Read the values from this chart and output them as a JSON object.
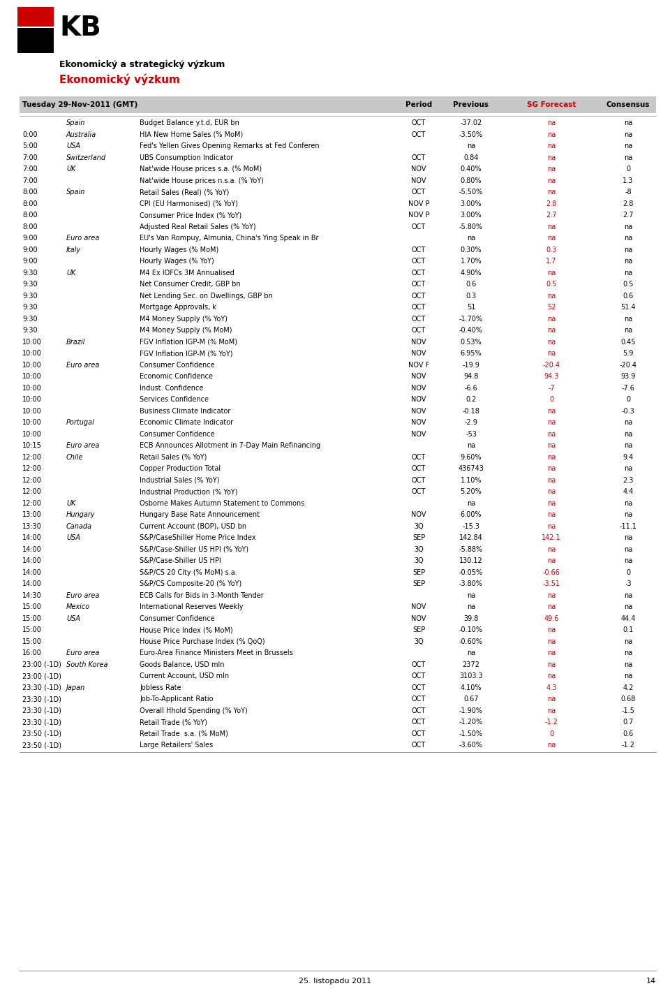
{
  "title_main": "Ekonomický a strategický výzkum",
  "title_section": "Ekonomický výzkum",
  "header_date": "Tuesday 29-Nov-2011 (GMT)",
  "header_cols": [
    "Period",
    "Previous",
    "SG Forecast",
    "Consensus"
  ],
  "footer_date": "25. listopadu 2011",
  "footer_page": "14",
  "rows": [
    {
      "time": "",
      "country": "Spain",
      "description": "Budget Balance y.t.d, EUR bn",
      "period": "OCT",
      "previous": "-37.02",
      "sgforecast": "na",
      "consensus": "na"
    },
    {
      "time": "0:00",
      "country": "Australia",
      "description": "HIA New Home Sales (% MoM)",
      "period": "OCT",
      "previous": "-3.50%",
      "sgforecast": "na",
      "consensus": "na"
    },
    {
      "time": "5:00",
      "country": "USA",
      "description": "Fed's Yellen Gives Opening Remarks at Fed Conferen",
      "period": "",
      "previous": "na",
      "sgforecast": "na",
      "consensus": "na"
    },
    {
      "time": "7:00",
      "country": "Switzerland",
      "description": "UBS Consumption Indicator",
      "period": "OCT",
      "previous": "0.84",
      "sgforecast": "na",
      "consensus": "na"
    },
    {
      "time": "7:00",
      "country": "UK",
      "description": "Nat'wide House prices s.a. (% MoM)",
      "period": "NOV",
      "previous": "0.40%",
      "sgforecast": "na",
      "consensus": "0"
    },
    {
      "time": "7:00",
      "country": "",
      "description": "Nat'wide House prices n.s.a. (% YoY)",
      "period": "NOV",
      "previous": "0.80%",
      "sgforecast": "na",
      "consensus": "1.3"
    },
    {
      "time": "8:00",
      "country": "Spain",
      "description": "Retail Sales (Real) (% YoY)",
      "period": "OCT",
      "previous": "-5.50%",
      "sgforecast": "na",
      "consensus": "-8"
    },
    {
      "time": "8:00",
      "country": "",
      "description": "CPI (EU Harmonised) (% YoY)",
      "period": "NOV P",
      "previous": "3.00%",
      "sgforecast": "2.8",
      "consensus": "2.8"
    },
    {
      "time": "8:00",
      "country": "",
      "description": "Consumer Price Index (% YoY)",
      "period": "NOV P",
      "previous": "3.00%",
      "sgforecast": "2.7",
      "consensus": "2.7"
    },
    {
      "time": "8:00",
      "country": "",
      "description": "Adjusted Real Retail Sales (% YoY)",
      "period": "OCT",
      "previous": "-5.80%",
      "sgforecast": "na",
      "consensus": "na"
    },
    {
      "time": "9:00",
      "country": "Euro area",
      "description": "EU's Van Rompuy, Almunia, China's Ying Speak in Br",
      "period": "",
      "previous": "na",
      "sgforecast": "na",
      "consensus": "na"
    },
    {
      "time": "9:00",
      "country": "Italy",
      "description": "Hourly Wages (% MoM)",
      "period": "OCT",
      "previous": "0.30%",
      "sgforecast": "0.3",
      "consensus": "na"
    },
    {
      "time": "9:00",
      "country": "",
      "description": "Hourly Wages (% YoY)",
      "period": "OCT",
      "previous": "1.70%",
      "sgforecast": "1.7",
      "consensus": "na"
    },
    {
      "time": "9:30",
      "country": "UK",
      "description": "M4 Ex IOFCs 3M Annualised",
      "period": "OCT",
      "previous": "4.90%",
      "sgforecast": "na",
      "consensus": "na"
    },
    {
      "time": "9:30",
      "country": "",
      "description": "Net Consumer Credit, GBP bn",
      "period": "OCT",
      "previous": "0.6",
      "sgforecast": "0.5",
      "consensus": "0.5"
    },
    {
      "time": "9:30",
      "country": "",
      "description": "Net Lending Sec. on Dwellings, GBP bn",
      "period": "OCT",
      "previous": "0.3",
      "sgforecast": "na",
      "consensus": "0.6"
    },
    {
      "time": "9:30",
      "country": "",
      "description": "Mortgage Approvals, k",
      "period": "OCT",
      "previous": "51",
      "sgforecast": "52",
      "consensus": "51.4"
    },
    {
      "time": "9:30",
      "country": "",
      "description": "M4 Money Supply (% YoY)",
      "period": "OCT",
      "previous": "-1.70%",
      "sgforecast": "na",
      "consensus": "na"
    },
    {
      "time": "9:30",
      "country": "",
      "description": "M4 Money Supply (% MoM)",
      "period": "OCT",
      "previous": "-0.40%",
      "sgforecast": "na",
      "consensus": "na"
    },
    {
      "time": "10:00",
      "country": "Brazil",
      "description": "FGV Inflation IGP-M (% MoM)",
      "period": "NOV",
      "previous": "0.53%",
      "sgforecast": "na",
      "consensus": "0.45"
    },
    {
      "time": "10:00",
      "country": "",
      "description": "FGV Inflation IGP-M (% YoY)",
      "period": "NOV",
      "previous": "6.95%",
      "sgforecast": "na",
      "consensus": "5.9"
    },
    {
      "time": "10:00",
      "country": "Euro area",
      "description": "Consumer Confidence",
      "period": "NOV F",
      "previous": "-19.9",
      "sgforecast": "-20.4",
      "consensus": "-20.4"
    },
    {
      "time": "10:00",
      "country": "",
      "description": "Economic Confidence",
      "period": "NOV",
      "previous": "94.8",
      "sgforecast": "94.3",
      "consensus": "93.9"
    },
    {
      "time": "10:00",
      "country": "",
      "description": "Indust. Confidence",
      "period": "NOV",
      "previous": "-6.6",
      "sgforecast": "-7",
      "consensus": "-7.6"
    },
    {
      "time": "10:00",
      "country": "",
      "description": "Services Confidence",
      "period": "NOV",
      "previous": "0.2",
      "sgforecast": "0",
      "consensus": "0"
    },
    {
      "time": "10:00",
      "country": "",
      "description": "Business Climate Indicator",
      "period": "NOV",
      "previous": "-0.18",
      "sgforecast": "na",
      "consensus": "-0.3"
    },
    {
      "time": "10:00",
      "country": "Portugal",
      "description": "Economic Climate Indicator",
      "period": "NOV",
      "previous": "-2.9",
      "sgforecast": "na",
      "consensus": "na"
    },
    {
      "time": "10:00",
      "country": "",
      "description": "Consumer Confidence",
      "period": "NOV",
      "previous": "-53",
      "sgforecast": "na",
      "consensus": "na"
    },
    {
      "time": "10:15",
      "country": "Euro area",
      "description": "ECB Announces Allotment in 7-Day Main Refinancing",
      "period": "",
      "previous": "na",
      "sgforecast": "na",
      "consensus": "na"
    },
    {
      "time": "12:00",
      "country": "Chile",
      "description": "Retail Sales (% YoY)",
      "period": "OCT",
      "previous": "9.60%",
      "sgforecast": "na",
      "consensus": "9.4"
    },
    {
      "time": "12:00",
      "country": "",
      "description": "Copper Production Total",
      "period": "OCT",
      "previous": "436743",
      "sgforecast": "na",
      "consensus": "na"
    },
    {
      "time": "12:00",
      "country": "",
      "description": "Industrial Sales (% YoY)",
      "period": "OCT",
      "previous": "1.10%",
      "sgforecast": "na",
      "consensus": "2.3"
    },
    {
      "time": "12:00",
      "country": "",
      "description": "Industrial Production (% YoY)",
      "period": "OCT",
      "previous": "5.20%",
      "sgforecast": "na",
      "consensus": "4.4"
    },
    {
      "time": "12:00",
      "country": "UK",
      "description": "Osborne Makes Autumn Statement to Commons",
      "period": "",
      "previous": "na",
      "sgforecast": "na",
      "consensus": "na"
    },
    {
      "time": "13:00",
      "country": "Hungary",
      "description": "Hungary Base Rate Announcement",
      "period": "NOV",
      "previous": "6.00%",
      "sgforecast": "na",
      "consensus": "na"
    },
    {
      "time": "13:30",
      "country": "Canada",
      "description": "Current Account (BOP), USD bn",
      "period": "3Q",
      "previous": "-15.3",
      "sgforecast": "na",
      "consensus": "-11.1"
    },
    {
      "time": "14:00",
      "country": "USA",
      "description": "S&P/CaseShiller Home Price Index",
      "period": "SEP",
      "previous": "142.84",
      "sgforecast": "142.1",
      "consensus": "na"
    },
    {
      "time": "14:00",
      "country": "",
      "description": "S&P/Case-Shiller US HPI (% YoY)",
      "period": "3Q",
      "previous": "-5.88%",
      "sgforecast": "na",
      "consensus": "na"
    },
    {
      "time": "14:00",
      "country": "",
      "description": "S&P/Case-Shiller US HPI",
      "period": "3Q",
      "previous": "130.12",
      "sgforecast": "na",
      "consensus": "na"
    },
    {
      "time": "14:00",
      "country": "",
      "description": "S&P/CS 20 City (% MoM) s.a.",
      "period": "SEP",
      "previous": "-0.05%",
      "sgforecast": "-0.66",
      "consensus": "0"
    },
    {
      "time": "14:00",
      "country": "",
      "description": "S&P/CS Composite-20 (% YoY)",
      "period": "SEP",
      "previous": "-3.80%",
      "sgforecast": "-3.51",
      "consensus": "-3"
    },
    {
      "time": "14:30",
      "country": "Euro area",
      "description": "ECB Calls for Bids in 3-Month Tender",
      "period": "",
      "previous": "na",
      "sgforecast": "na",
      "consensus": "na"
    },
    {
      "time": "15:00",
      "country": "Mexico",
      "description": "International Reserves Weekly",
      "period": "NOV",
      "previous": "na",
      "sgforecast": "na",
      "consensus": "na"
    },
    {
      "time": "15:00",
      "country": "USA",
      "description": "Consumer Confidence",
      "period": "NOV",
      "previous": "39.8",
      "sgforecast": "49.6",
      "consensus": "44.4"
    },
    {
      "time": "15:00",
      "country": "",
      "description": "House Price Index (% MoM)",
      "period": "SEP",
      "previous": "-0.10%",
      "sgforecast": "na",
      "consensus": "0.1"
    },
    {
      "time": "15:00",
      "country": "",
      "description": "House Price Purchase Index (% QoQ)",
      "period": "3Q",
      "previous": "-0.60%",
      "sgforecast": "na",
      "consensus": "na"
    },
    {
      "time": "16:00",
      "country": "Euro area",
      "description": "Euro-Area Finance Ministers Meet in Brussels",
      "period": "",
      "previous": "na",
      "sgforecast": "na",
      "consensus": "na"
    },
    {
      "time": "23:00 (-1D)",
      "country": "South Korea",
      "description": "Goods Balance, USD mln",
      "period": "OCT",
      "previous": "2372",
      "sgforecast": "na",
      "consensus": "na"
    },
    {
      "time": "23:00 (-1D)",
      "country": "",
      "description": "Current Account, USD mln",
      "period": "OCT",
      "previous": "3103.3",
      "sgforecast": "na",
      "consensus": "na"
    },
    {
      "time": "23:30 (-1D)",
      "country": "Japan",
      "description": "Jobless Rate",
      "period": "OCT",
      "previous": "4.10%",
      "sgforecast": "4.3",
      "consensus": "4.2"
    },
    {
      "time": "23:30 (-1D)",
      "country": "",
      "description": "Job-To-Applicant Ratio",
      "period": "OCT",
      "previous": "0.67",
      "sgforecast": "na",
      "consensus": "0.68"
    },
    {
      "time": "23:30 (-1D)",
      "country": "",
      "description": "Overall Hhold Spending (% YoY)",
      "period": "OCT",
      "previous": "-1.90%",
      "sgforecast": "na",
      "consensus": "-1.5"
    },
    {
      "time": "23:30 (-1D)",
      "country": "",
      "description": "Retail Trade (% YoY)",
      "period": "OCT",
      "previous": "-1.20%",
      "sgforecast": "-1.2",
      "consensus": "0.7"
    },
    {
      "time": "23:50 (-1D)",
      "country": "",
      "description": "Retail Trade  s.a. (% MoM)",
      "period": "OCT",
      "previous": "-1.50%",
      "sgforecast": "0",
      "consensus": "0.6"
    },
    {
      "time": "23:50 (-1D)",
      "country": "",
      "description": "Large Retailers' Sales",
      "period": "OCT",
      "previous": "-3.60%",
      "sgforecast": "na",
      "consensus": "-1.2"
    }
  ],
  "red": "#cc0000",
  "black": "#000000",
  "header_bg": "#c8c8c8",
  "logo_black": "#000000",
  "logo_red": "#cc0000"
}
